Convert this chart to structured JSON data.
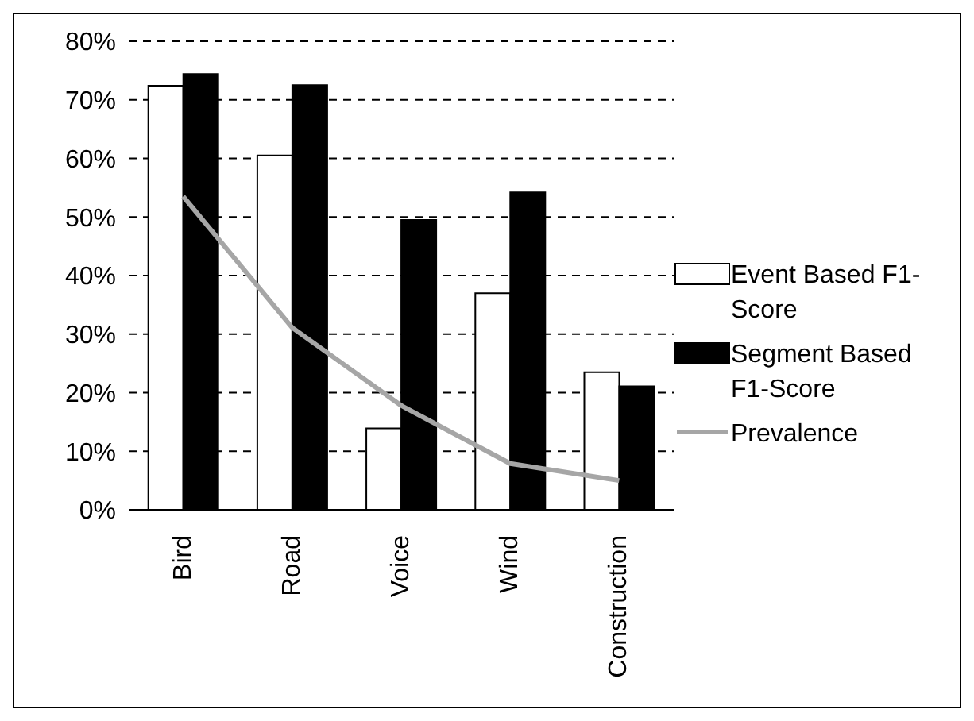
{
  "chart_data": {
    "type": "bar",
    "categories": [
      "Bird",
      "Road",
      "Voice",
      "Wind",
      "Construction"
    ],
    "series": [
      {
        "name": "Event Based F1-Score",
        "color": "#ffffff",
        "values": [
          72.4,
          60.5,
          13.9,
          37.0,
          23.5
        ]
      },
      {
        "name": "Segment Based F1-Score",
        "color": "#000000",
        "values": [
          74.4,
          72.5,
          49.5,
          54.2,
          21.1
        ]
      },
      {
        "name": "Prevalence",
        "type": "line",
        "color": "#a6a6a6",
        "values": [
          53.5,
          31.1,
          17.8,
          7.9,
          5.0
        ]
      }
    ],
    "ylim": [
      0,
      80
    ],
    "yticks": [
      {
        "value": 0,
        "label": "0%"
      },
      {
        "value": 10,
        "label": "10%"
      },
      {
        "value": 20,
        "label": "20%"
      },
      {
        "value": 30,
        "label": "30%"
      },
      {
        "value": 40,
        "label": "40%"
      },
      {
        "value": 50,
        "label": "50%"
      },
      {
        "value": 60,
        "label": "60%"
      },
      {
        "value": 70,
        "label": "70%"
      },
      {
        "value": 80,
        "label": "80%"
      }
    ],
    "grid": "y",
    "legend": "right",
    "marker": "none"
  }
}
